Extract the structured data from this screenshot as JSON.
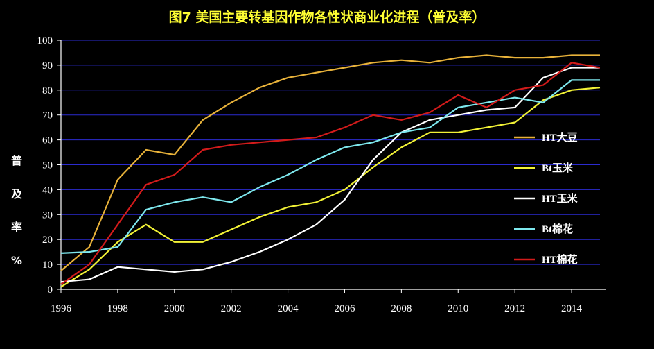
{
  "chart_data": {
    "type": "line",
    "title": "图7  美国主要转基因作物各性状商业化进程（普及率）",
    "ylabel_lines": [
      "普",
      "及",
      "率",
      "%"
    ],
    "xlabel": "",
    "xlim": [
      1996,
      2015
    ],
    "ylim": [
      0,
      100
    ],
    "x_ticks": [
      "1996",
      "1998",
      "2000",
      "2002",
      "2004",
      "2006",
      "2008",
      "2010",
      "2012",
      "2014"
    ],
    "y_ticks": [
      "0",
      "10",
      "20",
      "30",
      "40",
      "50",
      "60",
      "70",
      "80",
      "90",
      "100"
    ],
    "grid": "horizontal",
    "legend_position": "right",
    "x": [
      1996,
      1997,
      1998,
      1999,
      2000,
      2001,
      2002,
      2003,
      2004,
      2005,
      2006,
      2007,
      2008,
      2009,
      2010,
      2011,
      2012,
      2013,
      2014,
      2015
    ],
    "series": [
      {
        "name": "HT大豆",
        "color": "#e8b23a",
        "values": [
          7.5,
          17,
          44,
          56,
          54,
          68,
          75,
          81,
          85,
          87,
          89,
          91,
          92,
          91,
          93,
          94,
          93,
          93,
          94,
          94
        ]
      },
      {
        "name": "Bt玉米",
        "color": "#f2f236",
        "values": [
          1,
          8,
          19,
          26,
          19,
          19,
          24,
          29,
          33,
          35,
          40,
          49,
          57,
          63,
          63,
          65,
          67,
          76,
          80,
          81
        ]
      },
      {
        "name": "HT玉米",
        "color": "#ffffff",
        "values": [
          3,
          4,
          9,
          8,
          7,
          8,
          11,
          15,
          20,
          26,
          36,
          52,
          63,
          68,
          70,
          72,
          73,
          85,
          89,
          89
        ]
      },
      {
        "name": "Bt棉花",
        "color": "#7ee8ee",
        "values": [
          14.5,
          15,
          17,
          32,
          35,
          37,
          35,
          41,
          46,
          52,
          57,
          59,
          63,
          65,
          73,
          75,
          77,
          75,
          84,
          84
        ]
      },
      {
        "name": "HT棉花",
        "color": "#d21b1b",
        "values": [
          2,
          10,
          26,
          42,
          46,
          56,
          58,
          59,
          60,
          61,
          65,
          70,
          68,
          71,
          78,
          73,
          80,
          82,
          91,
          89
        ]
      }
    ]
  }
}
